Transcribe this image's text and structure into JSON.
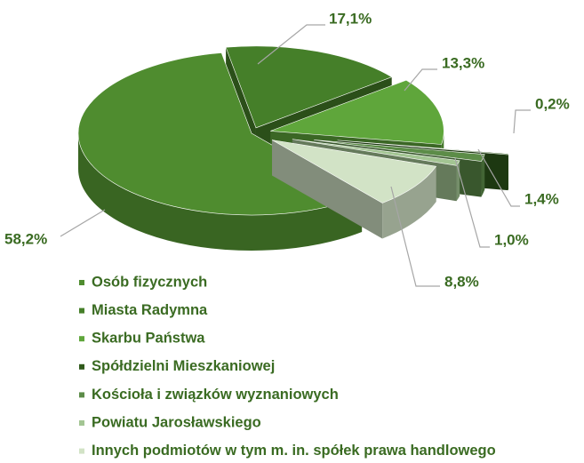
{
  "chart_data": {
    "type": "pie",
    "categories": [
      "Osób fizycznych",
      "Miasta Radymna",
      "Skarbu Państwa",
      "Spółdzielni Mieszkaniowej",
      "Kościoła i związków wyznaniowych",
      "Powiatu Jarosławskiego",
      "Innych podmiotów w tym m. in. spółek prawa handlowego"
    ],
    "values": [
      58.2,
      17.1,
      13.3,
      0.2,
      1.4,
      1.0,
      8.8
    ],
    "value_labels": [
      "58,2%",
      "17,1%",
      "13,3%",
      "0,2%",
      "1,4%",
      "1,0%",
      "8,8%"
    ],
    "colors": [
      "#4f8c2f",
      "#457f29",
      "#5fa63b",
      "#2f5a1b",
      "#5c8c48",
      "#a3c593",
      "#d2e3c6"
    ],
    "legend": "bottom"
  }
}
